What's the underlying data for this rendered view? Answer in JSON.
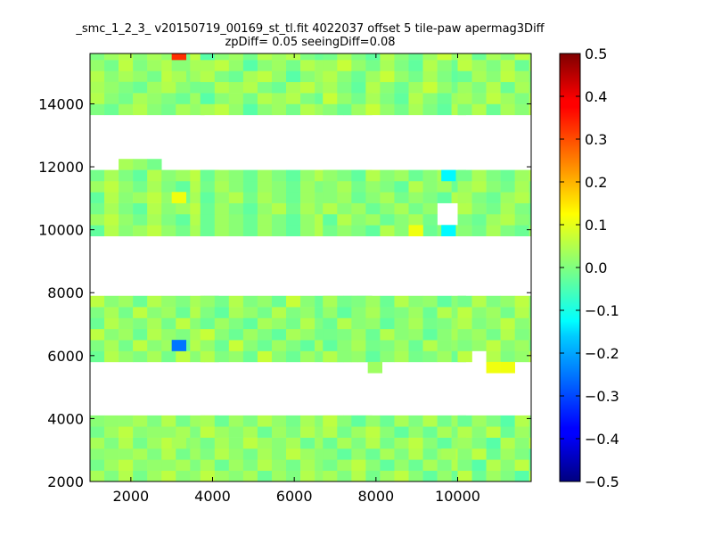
{
  "chart_data": {
    "type": "heatmap",
    "title_line1": "_smc_1_2_3_ v20150719_00169_st_tl.fit 4022037 offset 5 tile-paw apermag3Diff",
    "title_line2": "zpDiff= 0.05 seeingDiff=0.08",
    "xlim": [
      1000,
      11800
    ],
    "ylim": [
      2000,
      15600
    ],
    "xticks": [
      2000,
      4000,
      6000,
      8000,
      10000
    ],
    "yticks": [
      2000,
      4000,
      6000,
      8000,
      10000,
      12000,
      14000
    ],
    "colorbar": {
      "vmin": -0.5,
      "vmax": 0.5,
      "colormap": "jet",
      "ticks": [
        -0.5,
        -0.4,
        -0.3,
        -0.2,
        -0.1,
        0.0,
        0.1,
        0.2,
        0.3,
        0.4,
        0.5
      ],
      "tick_labels": [
        "−0.5",
        "−0.4",
        "−0.3",
        "−0.2",
        "−0.1",
        "0.0",
        "0.1",
        "0.2",
        "0.3",
        "0.4",
        "0.5"
      ]
    },
    "cell_size": 350,
    "grid_origin": [
      1000,
      2000
    ],
    "cells": [
      [
        1000,
        14700,
        "aaaaaaaa"
      ],
      [
        1000,
        15050,
        "aaaaaaaa"
      ],
      [
        1000,
        15400,
        "aaaaaaaa"
      ],
      [
        1000,
        13650,
        "bbbbbbbb"
      ],
      [
        1000,
        14000,
        "bbbbbbbb"
      ],
      [
        1000,
        14350,
        "bbbbbbbb"
      ],
      [
        3000,
        14700,
        "a"
      ],
      [
        3000,
        15050,
        "b"
      ],
      [
        3000,
        15400,
        "r"
      ],
      [
        3700,
        13650,
        "cccccccccccc"
      ],
      [
        3700,
        14000,
        "cccccccccccc"
      ],
      [
        3700,
        14350,
        "cccccccccccc"
      ],
      [
        3700,
        14700,
        "cccccccccccc"
      ],
      [
        3700,
        15050,
        "cccccccccccc"
      ],
      [
        3700,
        15400,
        "cccccccccccc"
      ],
      [
        6700,
        13650,
        "dddddddddd"
      ],
      [
        6700,
        14000,
        "dddddddddd"
      ],
      [
        6700,
        14350,
        "dddddddddd"
      ],
      [
        6700,
        14700,
        "dddddddddd"
      ],
      [
        6700,
        15050,
        "dddddddddd"
      ],
      [
        6700,
        15400,
        "dddddddddd"
      ],
      [
        10000,
        13650,
        "eeeeeee"
      ],
      [
        10000,
        14000,
        "eeeeeee"
      ],
      [
        10000,
        14350,
        "eeeeeee"
      ],
      [
        10000,
        14700,
        "eeeeeee"
      ],
      [
        10000,
        15050,
        "eeeeeee"
      ],
      [
        10000,
        15400,
        "eeeeeee"
      ],
      [
        1700,
        11900,
        "aaa"
      ],
      [
        1000,
        9800,
        "fffffffff"
      ],
      [
        1000,
        10150,
        "fffffffff"
      ],
      [
        1000,
        10500,
        "fffffffff"
      ],
      [
        1000,
        10850,
        "fffffffff"
      ],
      [
        1000,
        11200,
        "fffffffff"
      ],
      [
        1000,
        11550,
        "fffffffff"
      ],
      [
        3000,
        10850,
        "y"
      ],
      [
        3700,
        9800,
        "ggggggggg"
      ],
      [
        3700,
        10150,
        "gggggggggggg"
      ],
      [
        3700,
        10500,
        "gggggggggggg"
      ],
      [
        3700,
        10850,
        "gggggggggggg"
      ],
      [
        3700,
        11200,
        "gggggggggggg"
      ],
      [
        3700,
        11550,
        "gggggggggggg"
      ],
      [
        6700,
        9800,
        "hhhhhhhhhh"
      ],
      [
        6700,
        10150,
        "hhhhhhhh"
      ],
      [
        6700,
        10500,
        "hhhhhhhh"
      ],
      [
        6700,
        10850,
        "hhhhhhhhhh"
      ],
      [
        6700,
        11200,
        "hhhhhhhhhh"
      ],
      [
        6700,
        11550,
        "hhhhhhhhhh"
      ],
      [
        8800,
        9800,
        "y"
      ],
      [
        9600,
        9800,
        "t"
      ],
      [
        9600,
        11550,
        "t"
      ],
      [
        10000,
        9800,
        "iiiiiii"
      ],
      [
        10000,
        10150,
        "iiiiiii"
      ],
      [
        10000,
        10500,
        "iiiiiii"
      ],
      [
        10000,
        10850,
        "iiiiiii"
      ],
      [
        10000,
        11200,
        "iiiiiii"
      ],
      [
        10000,
        11550,
        "iiiiiii"
      ],
      [
        1000,
        5800,
        "jjjjjjjjj"
      ],
      [
        1000,
        6150,
        "jjjjjjjjj"
      ],
      [
        1000,
        6500,
        "jjjjjjjjj"
      ],
      [
        1000,
        6850,
        "jjjjjjjjj"
      ],
      [
        1000,
        7200,
        "jjjjjjjjj"
      ],
      [
        1000,
        7550,
        "jjjjjjjjj"
      ],
      [
        3000,
        6150,
        "B"
      ],
      [
        3700,
        5800,
        "kkkkkkkkkkkk"
      ],
      [
        3700,
        6150,
        "kkkkkkkkkkkk"
      ],
      [
        3700,
        6500,
        "kkkkkkkkkkkk"
      ],
      [
        3700,
        6850,
        "kkkkkkkkkkkk"
      ],
      [
        3700,
        7200,
        "kkkkkkkkkkkkk"
      ],
      [
        3700,
        7550,
        "kkkkkkkkkkkk"
      ],
      [
        6700,
        5800,
        "llllllllll"
      ],
      [
        6700,
        6150,
        "llllllllll"
      ],
      [
        6700,
        6500,
        "llllllllll"
      ],
      [
        6700,
        6850,
        "llllllllll"
      ],
      [
        6700,
        7200,
        "llllllllll"
      ],
      [
        6700,
        7550,
        "llllllllll"
      ],
      [
        7800,
        5450,
        "l"
      ],
      [
        10000,
        5800,
        "m"
      ],
      [
        10700,
        5800,
        "mmmmm"
      ],
      [
        10000,
        6150,
        "mmmmmmm"
      ],
      [
        10000,
        6500,
        "mmmmmmm"
      ],
      [
        10000,
        6850,
        "mmmmmmm"
      ],
      [
        10000,
        7200,
        "mmmmmmm"
      ],
      [
        10000,
        7550,
        "mmmmmmm"
      ],
      [
        10700,
        5450,
        "yy"
      ],
      [
        1000,
        2000,
        "nnnnnnnnn"
      ],
      [
        1000,
        2350,
        "nnnnnnnnn"
      ],
      [
        1000,
        2700,
        "nnnnnnnnn"
      ],
      [
        1000,
        3050,
        "nnnnnnnnn"
      ],
      [
        1000,
        3400,
        "nnnnnnnnn"
      ],
      [
        1000,
        3750,
        "nnnnnnnnn"
      ],
      [
        3000,
        3050,
        "a"
      ],
      [
        3700,
        2000,
        "oooooooooooo"
      ],
      [
        3700,
        2350,
        "oooooooooooo"
      ],
      [
        3700,
        2700,
        "oooooooooooo"
      ],
      [
        3700,
        3050,
        "oooooooooooo"
      ],
      [
        3700,
        3400,
        "oooooooooooo"
      ],
      [
        3700,
        3750,
        "oooooooooooo"
      ],
      [
        6700,
        2000,
        "pppppppppp"
      ],
      [
        6700,
        2350,
        "pppppppppp"
      ],
      [
        6700,
        2700,
        "pppppppppp"
      ],
      [
        6700,
        3050,
        "pppppppppp"
      ],
      [
        6700,
        3400,
        "pppppppppp"
      ],
      [
        6700,
        3750,
        "pppppppppp"
      ],
      [
        9600,
        2700,
        "a"
      ],
      [
        10000,
        2000,
        "qqqqqqq"
      ],
      [
        10000,
        2350,
        "qqqqqqq"
      ],
      [
        10000,
        2700,
        "qqqqqqq"
      ],
      [
        10000,
        3050,
        "qqqqqqq"
      ],
      [
        10000,
        3400,
        "qqqqqqq"
      ],
      [
        10000,
        3750,
        "qqqqqqq"
      ]
    ],
    "palette": {
      "a": [
        0.03,
        0.05,
        0.01,
        0.04,
        0.02,
        -0.01,
        0.06,
        0.0
      ],
      "b": [
        0.04,
        0.02,
        0.0,
        -0.02,
        0.03,
        0.05,
        0.01,
        -0.01
      ],
      "c": [
        0.03,
        0.05,
        0.0,
        -0.02,
        0.04,
        0.06,
        0.02,
        -0.04,
        0.01,
        0.03,
        -0.01,
        0.05
      ],
      "d": [
        0.02,
        -0.01,
        0.04,
        0.0,
        -0.03,
        0.05,
        0.01,
        -0.02,
        0.03,
        0.07
      ],
      "e": [
        0.03,
        0.0,
        0.05,
        -0.02,
        0.04,
        0.01,
        0.06
      ],
      "f": [
        0.02,
        -0.01,
        0.04,
        0.0,
        -0.03,
        0.05,
        0.01,
        0.03,
        0.06
      ],
      "g": [
        0.01,
        -0.02,
        0.03,
        0.0,
        -0.03,
        0.02,
        0.05,
        -0.01,
        0.04,
        0.01,
        -0.02,
        0.03
      ],
      "h": [
        0.03,
        -0.02,
        0.01,
        0.04,
        -0.01,
        0.02,
        0.0,
        -0.03,
        0.05,
        0.01
      ],
      "i": [
        0.0,
        -0.02,
        0.03,
        0.05,
        0.01,
        -0.01,
        0.04
      ],
      "j": [
        0.02,
        0.0,
        0.04,
        -0.01,
        0.06,
        0.01,
        0.03,
        -0.02,
        0.05
      ],
      "k": [
        0.01,
        -0.02,
        0.03,
        0.0,
        -0.03,
        0.04,
        0.02,
        -0.01,
        0.05,
        0.0,
        0.02,
        -0.02,
        0.07
      ],
      "l": [
        0.02,
        -0.03,
        0.01,
        0.04,
        -0.01,
        0.0,
        0.03,
        -0.02,
        0.05,
        0.01
      ],
      "m": [
        0.03,
        -0.01,
        0.05,
        0.0,
        0.02,
        0.06,
        0.01
      ],
      "n": [
        0.02,
        0.04,
        0.0,
        0.05,
        -0.01,
        0.03,
        0.06,
        0.01,
        0.02
      ],
      "o": [
        0.01,
        0.04,
        -0.02,
        0.03,
        0.0,
        0.05,
        0.02,
        -0.01,
        0.04,
        0.01,
        0.06,
        0.03
      ],
      "p": [
        0.02,
        -0.02,
        0.04,
        0.0,
        0.05,
        -0.01,
        0.03,
        0.06,
        0.01,
        -0.03
      ],
      "q": [
        0.03,
        0.0,
        -0.04,
        0.05,
        0.01,
        0.06,
        -0.02
      ],
      "r": [
        0.33
      ],
      "y": [
        0.11
      ],
      "t": [
        -0.13
      ],
      "B": [
        -0.26
      ]
    }
  }
}
